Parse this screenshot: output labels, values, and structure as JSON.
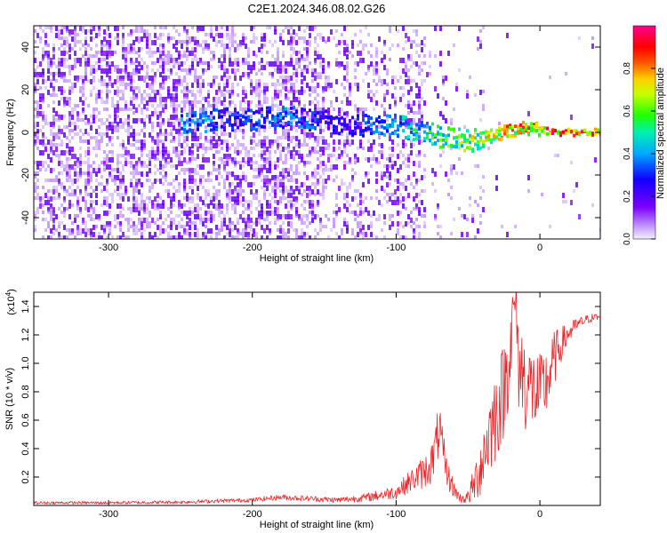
{
  "title": "C2E1.2024.346.08.02.G26",
  "colors": {
    "snr_line": "#e8262a",
    "frame": "#000000",
    "spectrogram_low": "#d9c8f5",
    "spectrogram_mid": "#7b2cff"
  },
  "chart_data": [
    {
      "type": "heatmap",
      "title": "C2E1.2024.346.08.02.G26",
      "xlabel": "Height of straight line (km)",
      "ylabel": "Frequency (Hz)",
      "xlim": [
        -352,
        42
      ],
      "ylim": [
        -50,
        50
      ],
      "x_ticks": [
        -300,
        -200,
        -100,
        0
      ],
      "x_tick_labels": [
        "-300",
        "-200",
        "-100",
        "0"
      ],
      "y_ticks": [
        -40,
        -20,
        0,
        20,
        40
      ],
      "y_tick_labels": [
        "-40",
        "-20",
        "0",
        "20",
        "40"
      ],
      "grid": false,
      "colorbar": {
        "label": "Normalized spectral amplitude",
        "range": [
          0,
          1
        ],
        "ticks": [
          0,
          0.2,
          0.4,
          0.6,
          0.8
        ],
        "tick_labels": [
          "0.0",
          "0.2",
          "0.4",
          "0.6",
          "0.8"
        ],
        "colormap": "rainbow (violet-blue-cyan-green-yellow-red-magenta)"
      },
      "ridge": {
        "x": [
          -240,
          -220,
          -200,
          -180,
          -160,
          -140,
          -120,
          -100,
          -80,
          -70,
          -60,
          -50,
          -40,
          -30,
          -20,
          -10,
          0,
          10,
          20,
          30,
          40
        ],
        "frequency": [
          5,
          6,
          6,
          7,
          6,
          4,
          3,
          3,
          0,
          -2,
          -3,
          -4,
          -3,
          -1,
          1,
          2,
          1,
          0,
          0,
          0,
          0
        ],
        "amplitude": [
          0.45,
          0.3,
          0.35,
          0.4,
          0.35,
          0.25,
          0.35,
          0.45,
          0.55,
          0.6,
          0.65,
          0.7,
          0.7,
          0.75,
          0.85,
          0.85,
          0.9,
          0.9,
          0.95,
          0.95,
          0.95
        ]
      }
    },
    {
      "type": "line",
      "xlabel": "Height of straight line (km)",
      "ylabel": "SNR (10 * v/v)",
      "multiplier_label": "(x10",
      "multiplier_exponent": "4",
      "multiplier_close": ")",
      "xlim": [
        -352,
        42
      ],
      "ylim": [
        0,
        1.5
      ],
      "x_ticks": [
        -300,
        -200,
        -100,
        0
      ],
      "x_tick_labels": [
        "-300",
        "-200",
        "-100",
        "0"
      ],
      "y_ticks": [
        0.2,
        0.4,
        0.6,
        0.8,
        1.0,
        1.2,
        1.4
      ],
      "y_tick_labels": [
        "0.2",
        "0.4",
        "0.6",
        "0.8",
        "1.0",
        "1.2",
        "1.4"
      ],
      "grid": false,
      "series": [
        {
          "x": [
            -352,
            -300,
            -250,
            -200,
            -180,
            -160,
            -140,
            -120,
            -100,
            -90,
            -80,
            -75,
            -72,
            -70,
            -68,
            -65,
            -60,
            -55,
            -50,
            -45,
            -40,
            -35,
            -30,
            -25,
            -20,
            -17,
            -15,
            -10,
            -5,
            0,
            5,
            10,
            15,
            20,
            25,
            30,
            35,
            42
          ],
          "y": [
            0.02,
            0.02,
            0.025,
            0.04,
            0.06,
            0.05,
            0.04,
            0.06,
            0.1,
            0.18,
            0.25,
            0.32,
            0.45,
            0.58,
            0.4,
            0.25,
            0.12,
            0.05,
            0.06,
            0.18,
            0.35,
            0.55,
            0.7,
            0.85,
            1.2,
            1.48,
            1.05,
            0.9,
            0.85,
            0.8,
            0.9,
            1.05,
            1.15,
            1.22,
            1.27,
            1.3,
            1.32,
            1.33
          ],
          "noise_amplitude": [
            0.01,
            0.01,
            0.012,
            0.015,
            0.02,
            0.02,
            0.02,
            0.03,
            0.05,
            0.08,
            0.12,
            0.15,
            0.18,
            0.2,
            0.18,
            0.12,
            0.06,
            0.03,
            0.05,
            0.15,
            0.25,
            0.3,
            0.35,
            0.35,
            0.35,
            0.2,
            0.35,
            0.35,
            0.3,
            0.3,
            0.25,
            0.2,
            0.12,
            0.08,
            0.05,
            0.04,
            0.03,
            0.03
          ]
        }
      ]
    }
  ]
}
